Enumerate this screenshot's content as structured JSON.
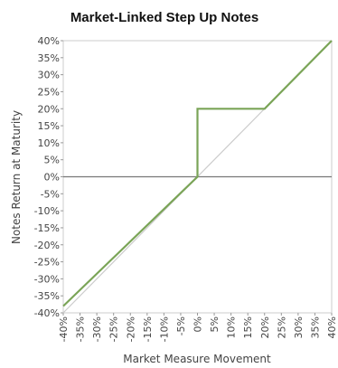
{
  "chart_data": {
    "type": "line",
    "title": "Market-Linked Step Up Notes",
    "xlabel": "Market Measure Movement",
    "ylabel": "Notes Return at Maturity",
    "xlim": [
      -40,
      40
    ],
    "ylim": [
      -40,
      40
    ],
    "x_tick_labels": [
      "-40%",
      "-35%",
      "-30%",
      "-25%",
      "-20%",
      "-15%",
      "-10%",
      "-5%",
      "0%",
      "5%",
      "10%",
      "15%",
      "20%",
      "25%",
      "30%",
      "35%",
      "40%"
    ],
    "y_tick_labels": [
      "40%",
      "35%",
      "30%",
      "25%",
      "20%",
      "15%",
      "10%",
      "5%",
      "0%",
      "-5%",
      "-10%",
      "-15%",
      "-20%",
      "-25%",
      "-30%",
      "-35%",
      "-40%"
    ],
    "x_tick_values": [
      -40,
      -35,
      -30,
      -25,
      -20,
      -15,
      -10,
      -5,
      0,
      5,
      10,
      15,
      20,
      25,
      30,
      35,
      40
    ],
    "y_tick_values": [
      40,
      35,
      30,
      25,
      20,
      15,
      10,
      5,
      0,
      -5,
      -10,
      -15,
      -20,
      -25,
      -30,
      -35,
      -40
    ],
    "grid": false,
    "legend": "none",
    "series": [
      {
        "role": "notes-return",
        "color": "#7aa457",
        "x": [
          -40,
          0,
          0,
          20,
          40
        ],
        "y": [
          -38,
          0,
          20,
          20,
          40
        ]
      },
      {
        "role": "market-reference",
        "color": "#cccccc",
        "x": [
          -40,
          40
        ],
        "y": [
          -40,
          40
        ]
      }
    ],
    "zero_line_color": "#777777"
  }
}
